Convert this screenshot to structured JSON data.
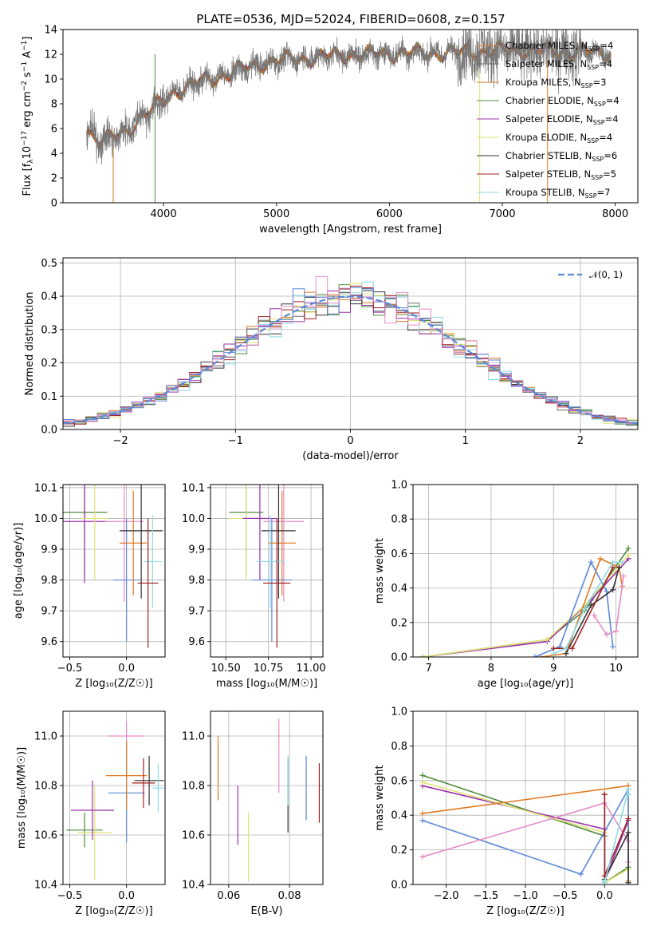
{
  "figure": {
    "title": "PLATE=0536, MJD=52024, FIBERID=0608, z=0.157"
  },
  "model_colors": [
    "#e07a22",
    "#6b6b6b",
    "#c47d25",
    "#4e8b3a",
    "#9b2fae",
    "#dfe374",
    "#333333",
    "#a11f1f",
    "#8fdbe3"
  ],
  "extra_colors": {
    "blue": "#5c88d8",
    "pink": "#e58bc8",
    "gray": "#777777"
  },
  "chart_data": [
    {
      "id": "spectrum",
      "type": "line",
      "xlabel": "wavelength [Angstrom, rest frame]",
      "ylabel": "Flux [f$\\lambda$10$^{-17}$ erg cm$^{-2}$ s$^{-1}$ A$^{-1}$]",
      "ylabel_parts": [
        "Flux [f",
        "λ",
        "10",
        "−17",
        " erg cm",
        "−2",
        " s",
        "−1",
        " A",
        "−1",
        "]"
      ],
      "xlim": [
        3110,
        8200
      ],
      "ylim": [
        0,
        14
      ],
      "xticks": [
        4000,
        5000,
        6000,
        7000,
        8000
      ],
      "yticks": [
        0,
        2,
        4,
        6,
        8,
        10,
        12,
        14
      ],
      "xtick_labels": [
        "4000",
        "5000",
        "6000",
        "7000",
        "8000"
      ],
      "ytick_labels": [
        "0",
        "2",
        "4",
        "6",
        "8",
        "10",
        "12",
        "14"
      ],
      "data_range": [
        3320,
        7960
      ],
      "continuum": {
        "x": [
          3320,
          3450,
          3600,
          3700,
          3800,
          3900,
          4000,
          4100,
          4300,
          4500,
          4700,
          4900,
          5100,
          5300,
          5500,
          5800,
          6100,
          6400,
          6700,
          7000,
          7300,
          7600,
          7960
        ],
        "y": [
          5.9,
          5.0,
          5.4,
          6.0,
          7.0,
          7.5,
          8.3,
          9.0,
          9.7,
          10.2,
          10.8,
          11.3,
          11.6,
          11.7,
          11.9,
          12.0,
          12.1,
          12.1,
          12.2,
          12.3,
          12.3,
          12.2,
          12.1
        ]
      },
      "legend": [
        {
          "label": "Chabrier MILES, N",
          "sub": "SSP",
          "val": "=4"
        },
        {
          "label": "Salpeter MILES, N",
          "sub": "SSP",
          "val": "=4"
        },
        {
          "label": "Kroupa MILES, N",
          "sub": "SSP",
          "val": "=3"
        },
        {
          "label": "Chabrier ELODIE, N",
          "sub": "SSP",
          "val": "=4"
        },
        {
          "label": "Salpeter ELODIE, N",
          "sub": "SSP",
          "val": "=4"
        },
        {
          "label": "Kroupa ELODIE, N",
          "sub": "SSP",
          "val": "=4"
        },
        {
          "label": "Chabrier STELIB, N",
          "sub": "SSP",
          "val": "=6"
        },
        {
          "label": "Salpeter STELIB, N",
          "sub": "SSP",
          "val": "=5"
        },
        {
          "label": "Kroupa STELIB, N",
          "sub": "SSP",
          "val": "=7"
        }
      ],
      "legend_placement": "right"
    },
    {
      "id": "residuals",
      "type": "histogram",
      "xlabel": "(data-model)/error",
      "ylabel": "Normed distribution",
      "xlim": [
        -2.5,
        2.5
      ],
      "ylim": [
        0,
        0.515
      ],
      "xticks": [
        -2,
        -1,
        0,
        1,
        2
      ],
      "xtick_labels": [
        "−2",
        "−1",
        "0",
        "1",
        "2"
      ],
      "yticks": [
        0,
        0.1,
        0.2,
        0.3,
        0.4,
        0.5
      ],
      "ytick_labels": [
        "0.0",
        "0.1",
        "0.2",
        "0.3",
        "0.4",
        "0.5"
      ],
      "bin_width": 0.1,
      "grid": true,
      "reference_curve": {
        "label": "𝒩(0, 1)",
        "mean": 0,
        "sigma": 1
      },
      "legend_placement": "top-right"
    },
    {
      "id": "age_vs_Z",
      "type": "errorbar",
      "xlabel": "Z [log₁₀(Z/Z☉)]",
      "ylabel": "age  [log₁₀(age/yr)]",
      "xlim": [
        -0.56,
        0.34
      ],
      "ylim": [
        9.55,
        10.11
      ],
      "xticks": [
        -0.5,
        0.0
      ],
      "xtick_labels": [
        "−0.5",
        "0.0"
      ],
      "yticks": [
        9.6,
        9.7,
        9.8,
        9.9,
        10.0,
        10.1
      ],
      "ytick_labels": [
        "9.6",
        "9.7",
        "9.8",
        "9.9",
        "10.0",
        "10.1"
      ],
      "points": [
        {
          "x": -0.37,
          "xerr": 0.2,
          "y": 10.02,
          "yerr": 0.2,
          "color": "#4e8b3a"
        },
        {
          "x": -0.37,
          "xerr": 0.2,
          "y": 9.99,
          "yerr": 0.2,
          "color": "#9b2fae"
        },
        {
          "x": -0.28,
          "xerr": 0.12,
          "y": 10.0,
          "yerr": 0.2,
          "color": "#dfe374"
        },
        {
          "x": -0.02,
          "xerr": 0.17,
          "y": 9.99,
          "yerr": 0.26,
          "color": "#e58bc8"
        },
        {
          "x": 0.0,
          "xerr": 0.12,
          "y": 9.8,
          "yerr": 0.2,
          "color": "#5c88d8"
        },
        {
          "x": 0.06,
          "xerr": 0.12,
          "y": 9.92,
          "yerr": 0.17,
          "color": "#e07a22"
        },
        {
          "x": 0.13,
          "xerr": 0.19,
          "y": 9.96,
          "yerr": 0.22,
          "color": "#333333"
        },
        {
          "x": 0.23,
          "xerr": 0.08,
          "y": 9.86,
          "yerr": 0.15,
          "color": "#8fdbe3"
        },
        {
          "x": 0.19,
          "xerr": 0.09,
          "y": 9.79,
          "yerr": 0.21,
          "color": "#a11f1f"
        }
      ]
    },
    {
      "id": "age_vs_mass",
      "type": "errorbar",
      "xlabel": "mass [log₁₀(M/M☉)]",
      "ylabel": "",
      "xlim": [
        10.41,
        11.07
      ],
      "ylim": [
        9.55,
        10.11
      ],
      "xticks": [
        10.5,
        10.75,
        11.0
      ],
      "xtick_labels": [
        "10.50",
        "10.75",
        "11.00"
      ],
      "yticks": [
        9.6,
        9.7,
        9.8,
        9.9,
        10.0,
        10.1
      ],
      "ytick_labels": [
        "9.6",
        "9.7",
        "9.8",
        "9.9",
        "10.0",
        "10.1"
      ],
      "points": [
        {
          "x": 10.62,
          "xerr": 0.1,
          "y": 10.02,
          "yerr": 0.2,
          "color": "#4e8b3a"
        },
        {
          "x": 10.62,
          "xerr": 0.1,
          "y": 10.0,
          "yerr": 0.2,
          "color": "#dfe374"
        },
        {
          "x": 10.7,
          "xerr": 0.1,
          "y": 10.0,
          "yerr": 0.2,
          "color": "#9b2fae"
        },
        {
          "x": 10.84,
          "xerr": 0.12,
          "y": 9.99,
          "yerr": 0.26,
          "color": "#e58bc8"
        },
        {
          "x": 10.77,
          "xerr": 0.12,
          "y": 9.8,
          "yerr": 0.2,
          "color": "#5c88d8"
        },
        {
          "x": 10.83,
          "xerr": 0.08,
          "y": 9.92,
          "yerr": 0.17,
          "color": "#e07a22"
        },
        {
          "x": 10.81,
          "xerr": 0.1,
          "y": 9.96,
          "yerr": 0.22,
          "color": "#333333"
        },
        {
          "x": 10.76,
          "xerr": 0.08,
          "y": 9.86,
          "yerr": 0.15,
          "color": "#8fdbe3"
        },
        {
          "x": 10.8,
          "xerr": 0.08,
          "y": 9.79,
          "yerr": 0.21,
          "color": "#a11f1f"
        }
      ]
    },
    {
      "id": "mass_weight_vs_age",
      "type": "line",
      "xlabel": "age  [log₁₀(age/yr)]",
      "ylabel": "mass weight",
      "xlim": [
        6.75,
        10.35
      ],
      "ylim": [
        0,
        1.0
      ],
      "xticks": [
        7,
        8,
        9,
        10
      ],
      "xtick_labels": [
        "7",
        "8",
        "9",
        "10"
      ],
      "yticks": [
        0,
        0.2,
        0.4,
        0.6,
        0.8,
        1.0
      ],
      "ytick_labels": [
        "0.0",
        "0.2",
        "0.4",
        "0.6",
        "0.8",
        "1.0"
      ],
      "series": [
        {
          "color": "#4e8b3a",
          "x": [
            6.9,
            8.9,
            9.5,
            10.2
          ],
          "y": [
            0.0,
            0.1,
            0.27,
            0.63
          ]
        },
        {
          "color": "#9b2fae",
          "x": [
            6.9,
            8.9,
            9.6,
            10.2
          ],
          "y": [
            0.0,
            0.09,
            0.33,
            0.57
          ]
        },
        {
          "color": "#dfe374",
          "x": [
            6.9,
            8.9,
            9.5,
            10.2
          ],
          "y": [
            0.0,
            0.1,
            0.3,
            0.59
          ]
        },
        {
          "color": "#e07a22",
          "x": [
            8.8,
            9.2,
            9.75,
            10.05,
            10.1
          ],
          "y": [
            0.0,
            0.02,
            0.57,
            0.52,
            0.41
          ]
        },
        {
          "color": "#5c88d8",
          "x": [
            8.7,
            9.1,
            9.6,
            9.85,
            9.95
          ],
          "y": [
            0.0,
            0.06,
            0.55,
            0.38,
            0.06
          ]
        },
        {
          "color": "#e58bc8",
          "x": [
            9.65,
            9.85,
            10.0,
            10.12
          ],
          "y": [
            0.24,
            0.13,
            0.15,
            0.47
          ]
        },
        {
          "color": "#333333",
          "x": [
            9.2,
            9.6,
            9.95,
            10.05
          ],
          "y": [
            0.02,
            0.3,
            0.39,
            0.52
          ]
        },
        {
          "color": "#a11f1f",
          "x": [
            9.0,
            9.3,
            9.95
          ],
          "y": [
            0.05,
            0.05,
            0.52
          ]
        },
        {
          "color": "#8fdbe3",
          "x": [
            9.0,
            9.2,
            9.5,
            9.95,
            10.1
          ],
          "y": [
            0.02,
            0.05,
            0.28,
            0.55,
            0.55
          ]
        }
      ]
    },
    {
      "id": "mass_vs_Z",
      "type": "errorbar",
      "xlabel": "Z [log₁₀(Z/Z☉)]",
      "ylabel": "mass [log₁₀(M/M☉)]",
      "xlim": [
        -0.56,
        0.34
      ],
      "ylim": [
        10.4,
        11.1
      ],
      "xticks": [
        -0.5,
        0.0
      ],
      "xtick_labels": [
        "−0.5",
        "0.0"
      ],
      "yticks": [
        10.4,
        10.6,
        10.8,
        11.0
      ],
      "ytick_labels": [
        "10.4",
        "10.6",
        "10.8",
        "11.0"
      ],
      "points": [
        {
          "x": -0.37,
          "xerr": 0.16,
          "y": 10.62,
          "yerr": 0.07,
          "color": "#4e8b3a"
        },
        {
          "x": -0.28,
          "xerr": 0.15,
          "y": 10.61,
          "yerr": 0.19,
          "color": "#dfe374"
        },
        {
          "x": -0.3,
          "xerr": 0.19,
          "y": 10.7,
          "yerr": 0.12,
          "color": "#9b2fae"
        },
        {
          "x": 0.0,
          "xerr": 0.16,
          "y": 11.0,
          "yerr": 0.06,
          "color": "#e58bc8"
        },
        {
          "x": 0.0,
          "xerr": 0.16,
          "y": 10.77,
          "yerr": 0.2,
          "color": "#5c88d8"
        },
        {
          "x": 0.0,
          "xerr": 0.18,
          "y": 10.84,
          "yerr": 0.14,
          "color": "#e07a22"
        },
        {
          "x": 0.2,
          "xerr": 0.13,
          "y": 10.82,
          "yerr": 0.1,
          "color": "#333333"
        },
        {
          "x": 0.28,
          "xerr": 0.05,
          "y": 10.79,
          "yerr": 0.1,
          "color": "#8fdbe3"
        },
        {
          "x": 0.15,
          "xerr": 0.1,
          "y": 10.81,
          "yerr": 0.1,
          "color": "#a11f1f"
        }
      ]
    },
    {
      "id": "mass_vs_ebv",
      "type": "errorbar",
      "xlabel": "E(B-V)",
      "ylabel": "",
      "xlim": [
        0.054,
        0.091
      ],
      "ylim": [
        10.4,
        11.1
      ],
      "xticks": [
        0.06,
        0.08
      ],
      "xtick_labels": [
        "0.06",
        "0.08"
      ],
      "yticks": [
        10.4,
        10.6,
        10.8,
        11.0
      ],
      "ytick_labels": [
        "10.4",
        "10.6",
        "10.8",
        "11.0"
      ],
      "points": [
        {
          "x": 0.0565,
          "y": 10.87,
          "yerr": 0.13,
          "color": "#e07a22"
        },
        {
          "x": 0.063,
          "y": 10.68,
          "yerr": 0.12,
          "color": "#9b2fae"
        },
        {
          "x": 0.0665,
          "y": 10.55,
          "yerr": 0.14,
          "color": "#dfe374"
        },
        {
          "x": 0.0765,
          "y": 10.92,
          "yerr": 0.15,
          "color": "#e58bc8"
        },
        {
          "x": 0.0795,
          "y": 10.76,
          "yerr": 0.15,
          "color": "#333333"
        },
        {
          "x": 0.0795,
          "y": 10.82,
          "yerr": 0.1,
          "color": "#8fdbe3"
        },
        {
          "x": 0.0855,
          "y": 10.79,
          "yerr": 0.13,
          "color": "#5c88d8"
        },
        {
          "x": 0.0898,
          "y": 10.77,
          "yerr": 0.12,
          "color": "#a11f1f"
        }
      ]
    },
    {
      "id": "mass_weight_vs_Z",
      "type": "line",
      "xlabel": "Z [log₁₀(Z/Z☉)]",
      "ylabel": "mass weight",
      "xlim": [
        -2.42,
        0.42
      ],
      "ylim": [
        0,
        1.0
      ],
      "xticks": [
        -2.0,
        -1.5,
        -1.0,
        -0.5,
        0.0
      ],
      "xtick_labels": [
        "−2.0",
        "−1.5",
        "−1.0",
        "−0.5",
        "0.0"
      ],
      "yticks": [
        0,
        0.2,
        0.4,
        0.6,
        0.8,
        1.0
      ],
      "ytick_labels": [
        "0.0",
        "0.2",
        "0.4",
        "0.6",
        "0.8",
        "1.0"
      ],
      "series": [
        {
          "color": "#4e8b3a",
          "x": [
            -2.3,
            0.0,
            0.0,
            0.3,
            0.3
          ],
          "y": [
            0.63,
            0.28,
            0.01,
            0.1,
            0.38
          ]
        },
        {
          "color": "#9b2fae",
          "x": [
            -2.3,
            0.0,
            0.0,
            0.3
          ],
          "y": [
            0.57,
            0.32,
            0.02,
            0.37
          ]
        },
        {
          "color": "#dfe374",
          "x": [
            -2.3,
            0.0,
            0.0,
            0.3,
            0.3
          ],
          "y": [
            0.59,
            0.3,
            0.01,
            0.09,
            0.55
          ]
        },
        {
          "color": "#e07a22",
          "x": [
            -2.3,
            0.3,
            0.3,
            0.3
          ],
          "y": [
            0.41,
            0.57,
            0.02,
            0.52
          ]
        },
        {
          "color": "#5c88d8",
          "x": [
            -2.3,
            -0.3,
            0.3,
            0.3
          ],
          "y": [
            0.37,
            0.06,
            0.55,
            0.01
          ]
        },
        {
          "color": "#e58bc8",
          "x": [
            -2.3,
            0.0,
            0.3,
            0.3
          ],
          "y": [
            0.16,
            0.47,
            0.25,
            0.13
          ]
        },
        {
          "color": "#333333",
          "x": [
            0.0,
            0.0,
            0.3,
            0.3
          ],
          "y": [
            0.52,
            0.03,
            0.3,
            0.01
          ]
        },
        {
          "color": "#a11f1f",
          "x": [
            0.0,
            0.0,
            0.3
          ],
          "y": [
            0.52,
            0.05,
            0.38
          ]
        },
        {
          "color": "#8fdbe3",
          "x": [
            0.0,
            0.0,
            0.3,
            0.3
          ],
          "y": [
            0.02,
            0.01,
            0.55,
            0.52
          ]
        }
      ]
    }
  ]
}
